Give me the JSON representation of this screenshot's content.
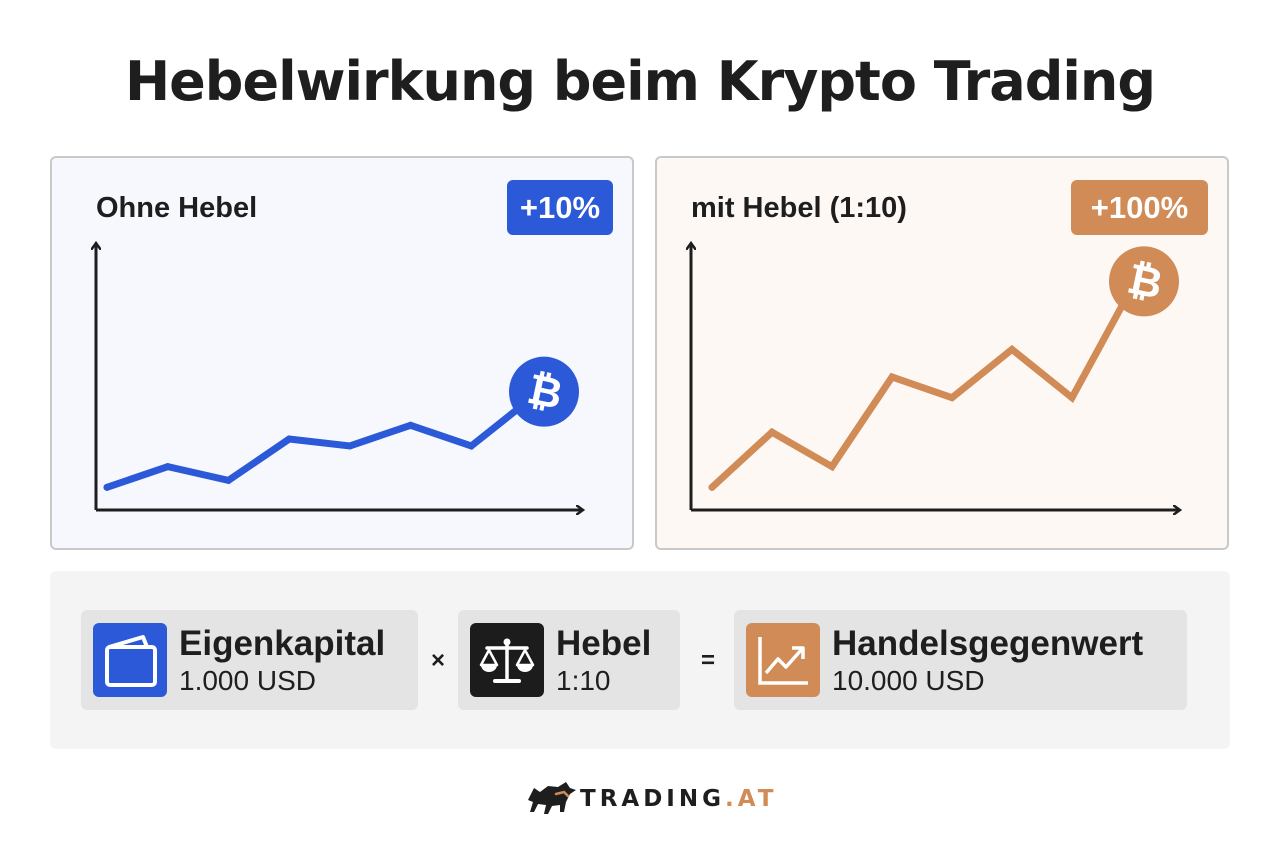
{
  "title": "Hebelwirkung beim Krypto Trading",
  "colors": {
    "blue": "#2b59d8",
    "orange": "#d08b56",
    "dark": "#1c1c1c"
  },
  "panels": [
    {
      "label": "Ohne Hebel",
      "badge": "+10%",
      "color": "#2b59d8",
      "marker_icon": "bitcoin-icon"
    },
    {
      "label": "mit Hebel (1:10)",
      "badge": "+100%",
      "color": "#d08b56",
      "marker_icon": "bitcoin-icon"
    }
  ],
  "chart_data": [
    {
      "type": "line",
      "title": "Ohne Hebel",
      "x": [
        1,
        2,
        3,
        4,
        5,
        6,
        7,
        8
      ],
      "y": [
        0.3,
        0.6,
        0.4,
        1.0,
        0.9,
        1.2,
        0.9,
        1.6
      ],
      "ylim": [
        0,
        3.8
      ],
      "series_label": "+10%"
    },
    {
      "type": "line",
      "title": "mit Hebel (1:10)",
      "x": [
        1,
        2,
        3,
        4,
        5,
        6,
        7,
        8
      ],
      "y": [
        0.3,
        1.1,
        0.6,
        1.9,
        1.6,
        2.3,
        1.6,
        3.2
      ],
      "ylim": [
        0,
        3.8
      ],
      "series_label": "+100%"
    }
  ],
  "equation": {
    "items": [
      {
        "label": "Eigenkapital",
        "value": "1.000 USD",
        "icon": "wallet-icon",
        "color": "#2b59d8"
      },
      {
        "label": "Hebel",
        "value": "1:10",
        "icon": "scale-icon",
        "color": "#1c1c1c"
      },
      {
        "label": "Handelsgegenwert",
        "value": "10.000 USD",
        "icon": "trend-chart-icon",
        "color": "#d08b56"
      }
    ],
    "op_times": "×",
    "op_equals": "="
  },
  "logo": {
    "main": "TRADING",
    "tld": ".AT",
    "icon": "bull-icon"
  }
}
